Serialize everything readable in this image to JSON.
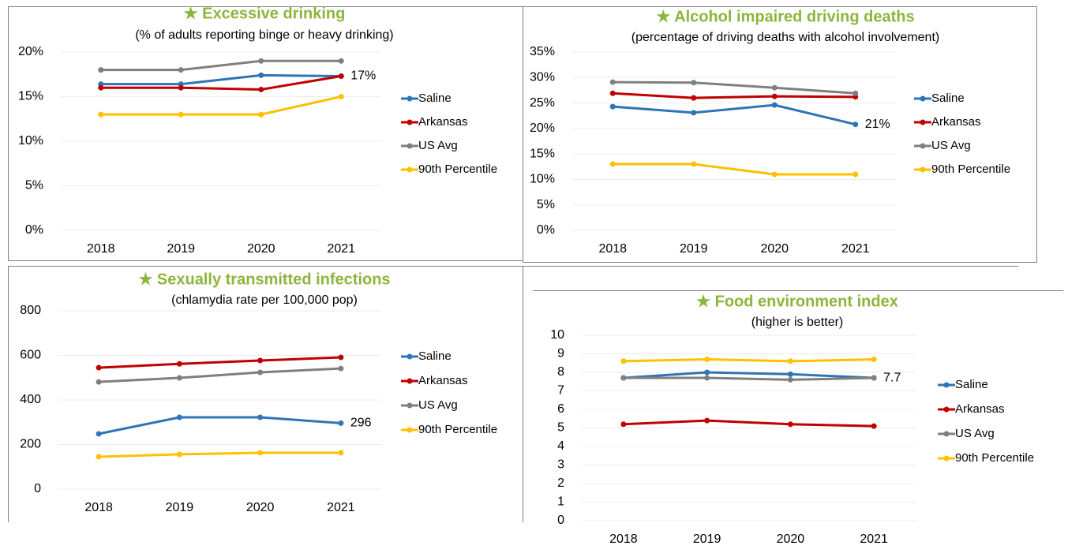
{
  "chart_data": [
    {
      "type": "line",
      "title": "★ Excessive drinking",
      "subtitle": "(% of adults reporting binge or heavy drinking)",
      "categories": [
        "2018",
        "2019",
        "2020",
        "2021"
      ],
      "series": [
        {
          "name": "Saline",
          "color": "#2e75b6",
          "values": [
            16.4,
            16.4,
            17.4,
            17.3
          ],
          "value_labels": [
            null,
            null,
            null,
            "17%"
          ]
        },
        {
          "name": "Arkansas",
          "color": "#c00000",
          "values": [
            16.0,
            16.0,
            15.8,
            17.3
          ]
        },
        {
          "name": "US Avg",
          "color": "#7f7f7f",
          "values": [
            18,
            18,
            19,
            19
          ]
        },
        {
          "name": "90th Percentile",
          "color": "#ffc000",
          "values": [
            13,
            13,
            13,
            15
          ]
        }
      ],
      "ylim": [
        0,
        20
      ],
      "yticks": [
        {
          "value": 0,
          "label": "0%"
        },
        {
          "value": 5,
          "label": "5%"
        },
        {
          "value": 10,
          "label": "10%"
        },
        {
          "value": 15,
          "label": "15%"
        },
        {
          "value": 20,
          "label": "20%"
        }
      ],
      "grid": true,
      "legend": "right"
    },
    {
      "type": "line",
      "title": "★ Alcohol impaired driving deaths",
      "subtitle": "(percentage of driving deaths with alcohol involvement)",
      "categories": [
        "2018",
        "2019",
        "2020",
        "2021"
      ],
      "series": [
        {
          "name": "Saline",
          "color": "#2e75b6",
          "values": [
            24.3,
            23.1,
            24.6,
            20.8
          ],
          "value_labels": [
            null,
            null,
            null,
            "21%"
          ]
        },
        {
          "name": "Arkansas",
          "color": "#c00000",
          "values": [
            26.9,
            26.0,
            26.3,
            26.2
          ]
        },
        {
          "name": "US Avg",
          "color": "#7f7f7f",
          "values": [
            29.1,
            29.0,
            28.0,
            26.9
          ]
        },
        {
          "name": "90th Percentile",
          "color": "#ffc000",
          "values": [
            13,
            13,
            11,
            11
          ]
        }
      ],
      "ylim": [
        0,
        35
      ],
      "yticks": [
        {
          "value": 0,
          "label": "0%"
        },
        {
          "value": 5,
          "label": "5%"
        },
        {
          "value": 10,
          "label": "10%"
        },
        {
          "value": 15,
          "label": "15%"
        },
        {
          "value": 20,
          "label": "20%"
        },
        {
          "value": 25,
          "label": "25%"
        },
        {
          "value": 30,
          "label": "30%"
        },
        {
          "value": 35,
          "label": "35%"
        }
      ],
      "grid": true,
      "legend": "right"
    },
    {
      "type": "line",
      "title": "★ Sexually transmitted infections",
      "subtitle": "(chlamydia rate per 100,000 pop)",
      "categories": [
        "2018",
        "2019",
        "2020",
        "2021"
      ],
      "series": [
        {
          "name": "Saline",
          "color": "#2e75b6",
          "values": [
            248,
            322,
            322,
            296
          ],
          "value_labels": [
            null,
            null,
            null,
            "296"
          ]
        },
        {
          "name": "Arkansas",
          "color": "#c00000",
          "values": [
            545,
            562,
            577,
            591
          ]
        },
        {
          "name": "US Avg",
          "color": "#7f7f7f",
          "values": [
            481,
            499,
            524,
            541
          ]
        },
        {
          "name": "90th Percentile",
          "color": "#ffc000",
          "values": [
            145,
            156,
            163,
            163
          ]
        }
      ],
      "ylim": [
        0,
        800
      ],
      "yticks": [
        0,
        200,
        400,
        600,
        800
      ],
      "grid": true,
      "legend": "right"
    },
    {
      "type": "line",
      "title": "★ Food environment index",
      "subtitle": "(higher is better)",
      "categories": [
        "2018",
        "2019",
        "2020",
        "2021"
      ],
      "series": [
        {
          "name": "Saline",
          "color": "#2e75b6",
          "values": [
            7.7,
            8.0,
            7.9,
            7.7
          ],
          "value_labels": [
            null,
            null,
            null,
            "7.7"
          ]
        },
        {
          "name": "Arkansas",
          "color": "#c00000",
          "values": [
            5.2,
            5.4,
            5.2,
            5.1
          ]
        },
        {
          "name": "US Avg",
          "color": "#7f7f7f",
          "values": [
            7.7,
            7.7,
            7.6,
            7.7
          ]
        },
        {
          "name": "90th Percentile",
          "color": "#ffc000",
          "values": [
            8.6,
            8.7,
            8.6,
            8.7
          ]
        }
      ],
      "ylim": [
        0,
        10
      ],
      "yticks": [
        0,
        1,
        2,
        3,
        4,
        5,
        6,
        7,
        8,
        9,
        10
      ],
      "grid": true,
      "legend": "right"
    }
  ]
}
